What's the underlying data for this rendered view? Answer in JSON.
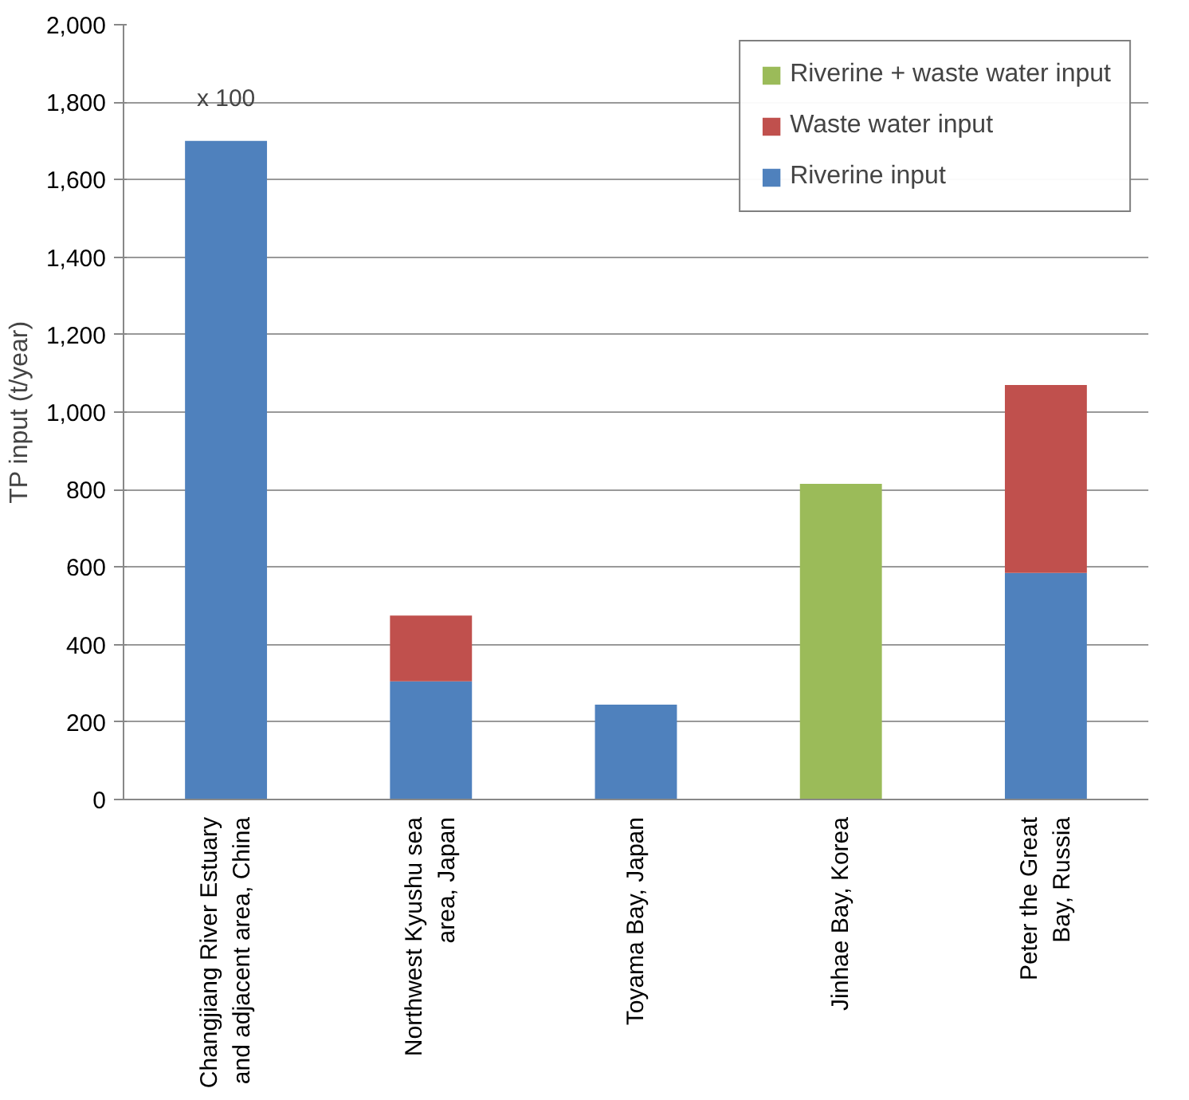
{
  "chart_data": {
    "type": "bar",
    "stacked": true,
    "ylabel": "TP input (t/year)",
    "categories": [
      "Changjiang River Estuary\nand adjacent area, China",
      "Northwest Kyushu sea\narea, Japan",
      "Toyama Bay, Japan",
      "Jinhae Bay, Korea",
      "Peter the Great\nBay, Russia"
    ],
    "series": [
      {
        "name": "Riverine input",
        "color": "#4f81bd",
        "values": [
          1700,
          305,
          245,
          null,
          585
        ]
      },
      {
        "name": "Waste water input",
        "color": "#c0504d",
        "values": [
          null,
          170,
          null,
          null,
          485
        ]
      },
      {
        "name": "Riverine + waste water input",
        "color": "#9bbb59",
        "values": [
          null,
          null,
          null,
          815,
          null
        ]
      }
    ],
    "ylim": [
      0,
      2000
    ],
    "yticks": [
      0,
      200,
      400,
      600,
      800,
      {
        "value": 1000,
        "label": "1,000"
      },
      {
        "value": 1200,
        "label": "1,200"
      },
      {
        "value": 1400,
        "label": "1,400"
      },
      {
        "value": 1600,
        "label": "1,600"
      },
      {
        "value": 1800,
        "label": "1,800"
      },
      {
        "value": 2000,
        "label": "2,000"
      }
    ],
    "grid": "y",
    "legend": "top right",
    "annotations": [
      {
        "text": "x 100",
        "x": "Changjiang River Estuary\nand adjacent area, China",
        "y": 1700
      }
    ]
  }
}
